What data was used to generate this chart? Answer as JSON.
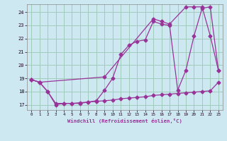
{
  "xlabel": "Windchill (Refroidissement éolien,°C)",
  "bg_color": "#cde8f0",
  "grid_color": "#a0ccbb",
  "line_color": "#993399",
  "xlim": [
    -0.5,
    23.5
  ],
  "ylim": [
    16.6,
    24.6
  ],
  "xticks": [
    0,
    1,
    2,
    3,
    4,
    5,
    6,
    7,
    8,
    9,
    10,
    11,
    12,
    13,
    14,
    15,
    16,
    17,
    18,
    19,
    20,
    21,
    22,
    23
  ],
  "yticks": [
    17,
    18,
    19,
    20,
    21,
    22,
    23,
    24
  ],
  "line1_x": [
    0,
    1,
    2,
    3,
    4,
    5,
    6,
    7,
    8,
    9,
    10,
    11,
    12,
    13,
    14,
    15,
    16,
    17,
    18,
    19,
    20,
    21,
    22,
    23
  ],
  "line1_y": [
    18.9,
    18.7,
    18.0,
    17.0,
    17.1,
    17.1,
    17.1,
    17.2,
    17.3,
    18.1,
    19.0,
    20.8,
    21.5,
    21.8,
    21.9,
    23.3,
    23.1,
    23.0,
    18.1,
    19.6,
    22.2,
    24.3,
    24.4,
    19.6
  ],
  "line2_x": [
    0,
    1,
    2,
    3,
    4,
    5,
    6,
    7,
    8,
    9,
    10,
    11,
    12,
    13,
    14,
    15,
    16,
    17,
    18,
    19,
    20,
    21,
    22,
    23
  ],
  "line2_y": [
    18.9,
    18.7,
    18.0,
    17.1,
    17.1,
    17.1,
    17.15,
    17.2,
    17.25,
    17.3,
    17.35,
    17.45,
    17.5,
    17.55,
    17.6,
    17.7,
    17.75,
    17.8,
    17.85,
    17.9,
    17.95,
    18.0,
    18.05,
    18.7
  ],
  "line3_x": [
    0,
    1,
    9,
    15,
    16,
    17,
    19,
    20,
    21,
    22,
    23
  ],
  "line3_y": [
    18.9,
    18.7,
    19.1,
    23.5,
    23.3,
    23.1,
    24.4,
    24.4,
    24.4,
    22.2,
    19.6
  ]
}
